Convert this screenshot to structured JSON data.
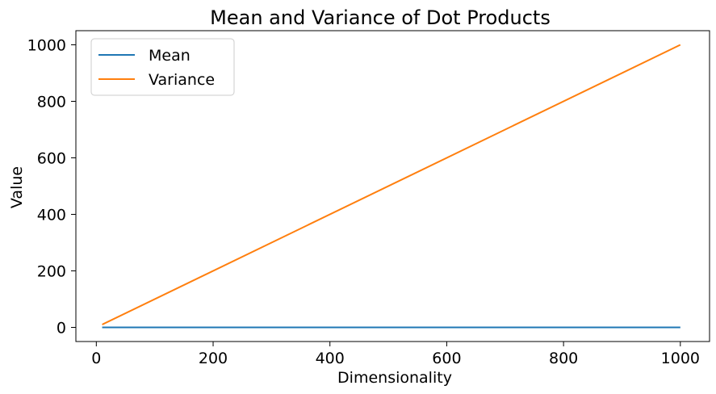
{
  "chart_data": {
    "type": "line",
    "title": "Mean and Variance of Dot Products",
    "xlabel": "Dimensionality",
    "ylabel": "Value",
    "xlim": [
      -35,
      1050
    ],
    "ylim": [
      -50,
      1050
    ],
    "xticks": [
      0,
      200,
      400,
      600,
      800,
      1000
    ],
    "yticks": [
      0,
      200,
      400,
      600,
      800,
      1000
    ],
    "grid": false,
    "legend_position": "top-left",
    "series": [
      {
        "name": "Mean",
        "color": "#1f77b4",
        "x": [
          10,
          1000
        ],
        "y": [
          0,
          0
        ]
      },
      {
        "name": "Variance",
        "color": "#ff7f0e",
        "x": [
          10,
          1000
        ],
        "y": [
          10,
          1000
        ]
      }
    ]
  }
}
